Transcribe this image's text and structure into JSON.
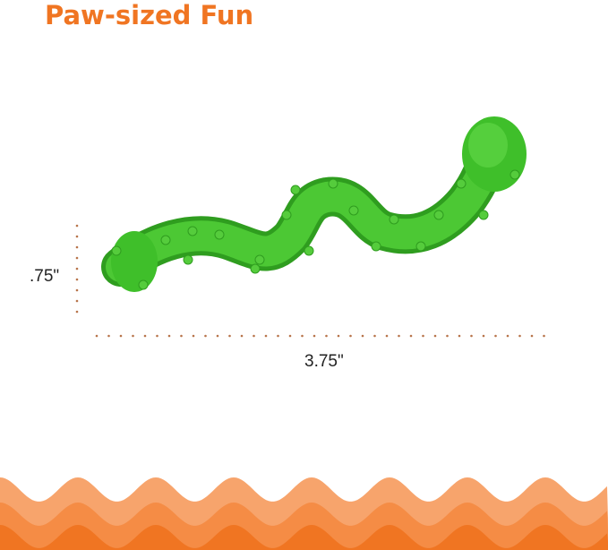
{
  "title": "Paw-sized Fun",
  "dimensions": {
    "height_label": ".75\"",
    "width_label": "3.75\""
  },
  "colors": {
    "title": "#f07522",
    "toy": "#3fbf2a",
    "wave_light": "#f7a46c",
    "wave_mid": "#f58c45",
    "wave_dark": "#f07522",
    "dots": "#b8744a"
  },
  "product": {
    "icon": "green-worm-toy"
  }
}
